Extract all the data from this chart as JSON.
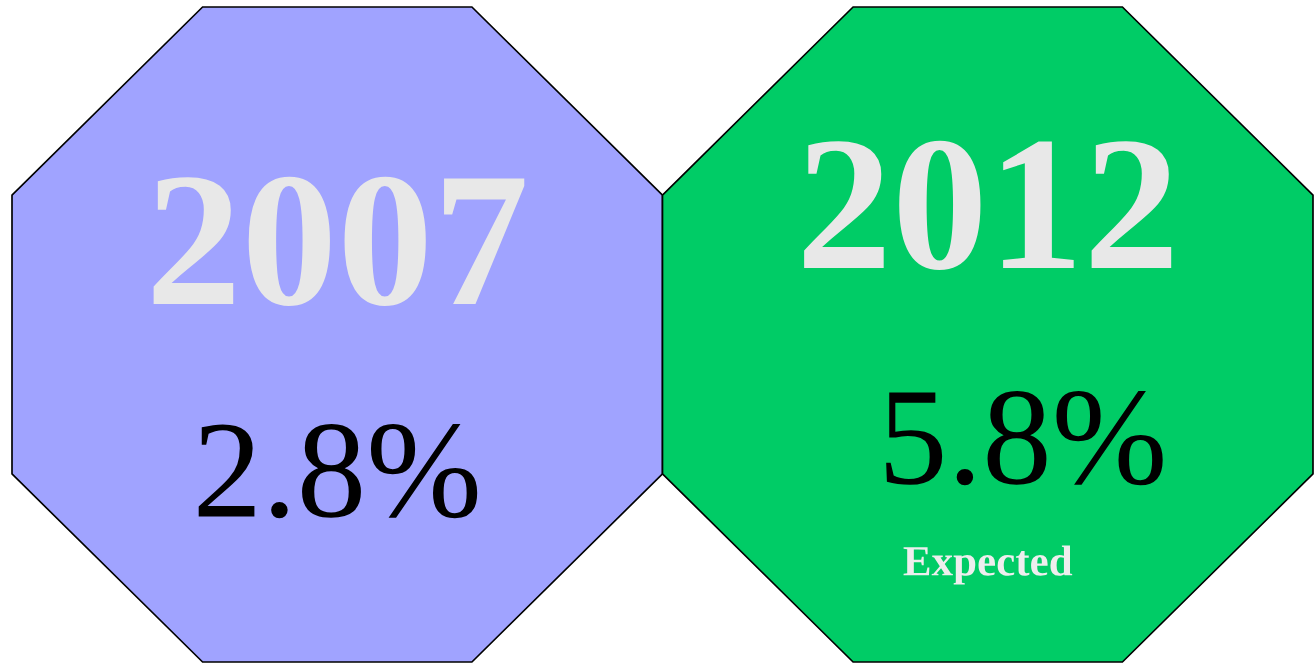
{
  "chart_data": {
    "type": "other",
    "categories": [
      "2007",
      "2012"
    ],
    "values": [
      2.8,
      5.8
    ],
    "value_labels": [
      "2.8%",
      "5.8%"
    ],
    "colors": [
      "#a0a3ff",
      "#00cc66"
    ],
    "annotations": [
      "Expected"
    ]
  }
}
